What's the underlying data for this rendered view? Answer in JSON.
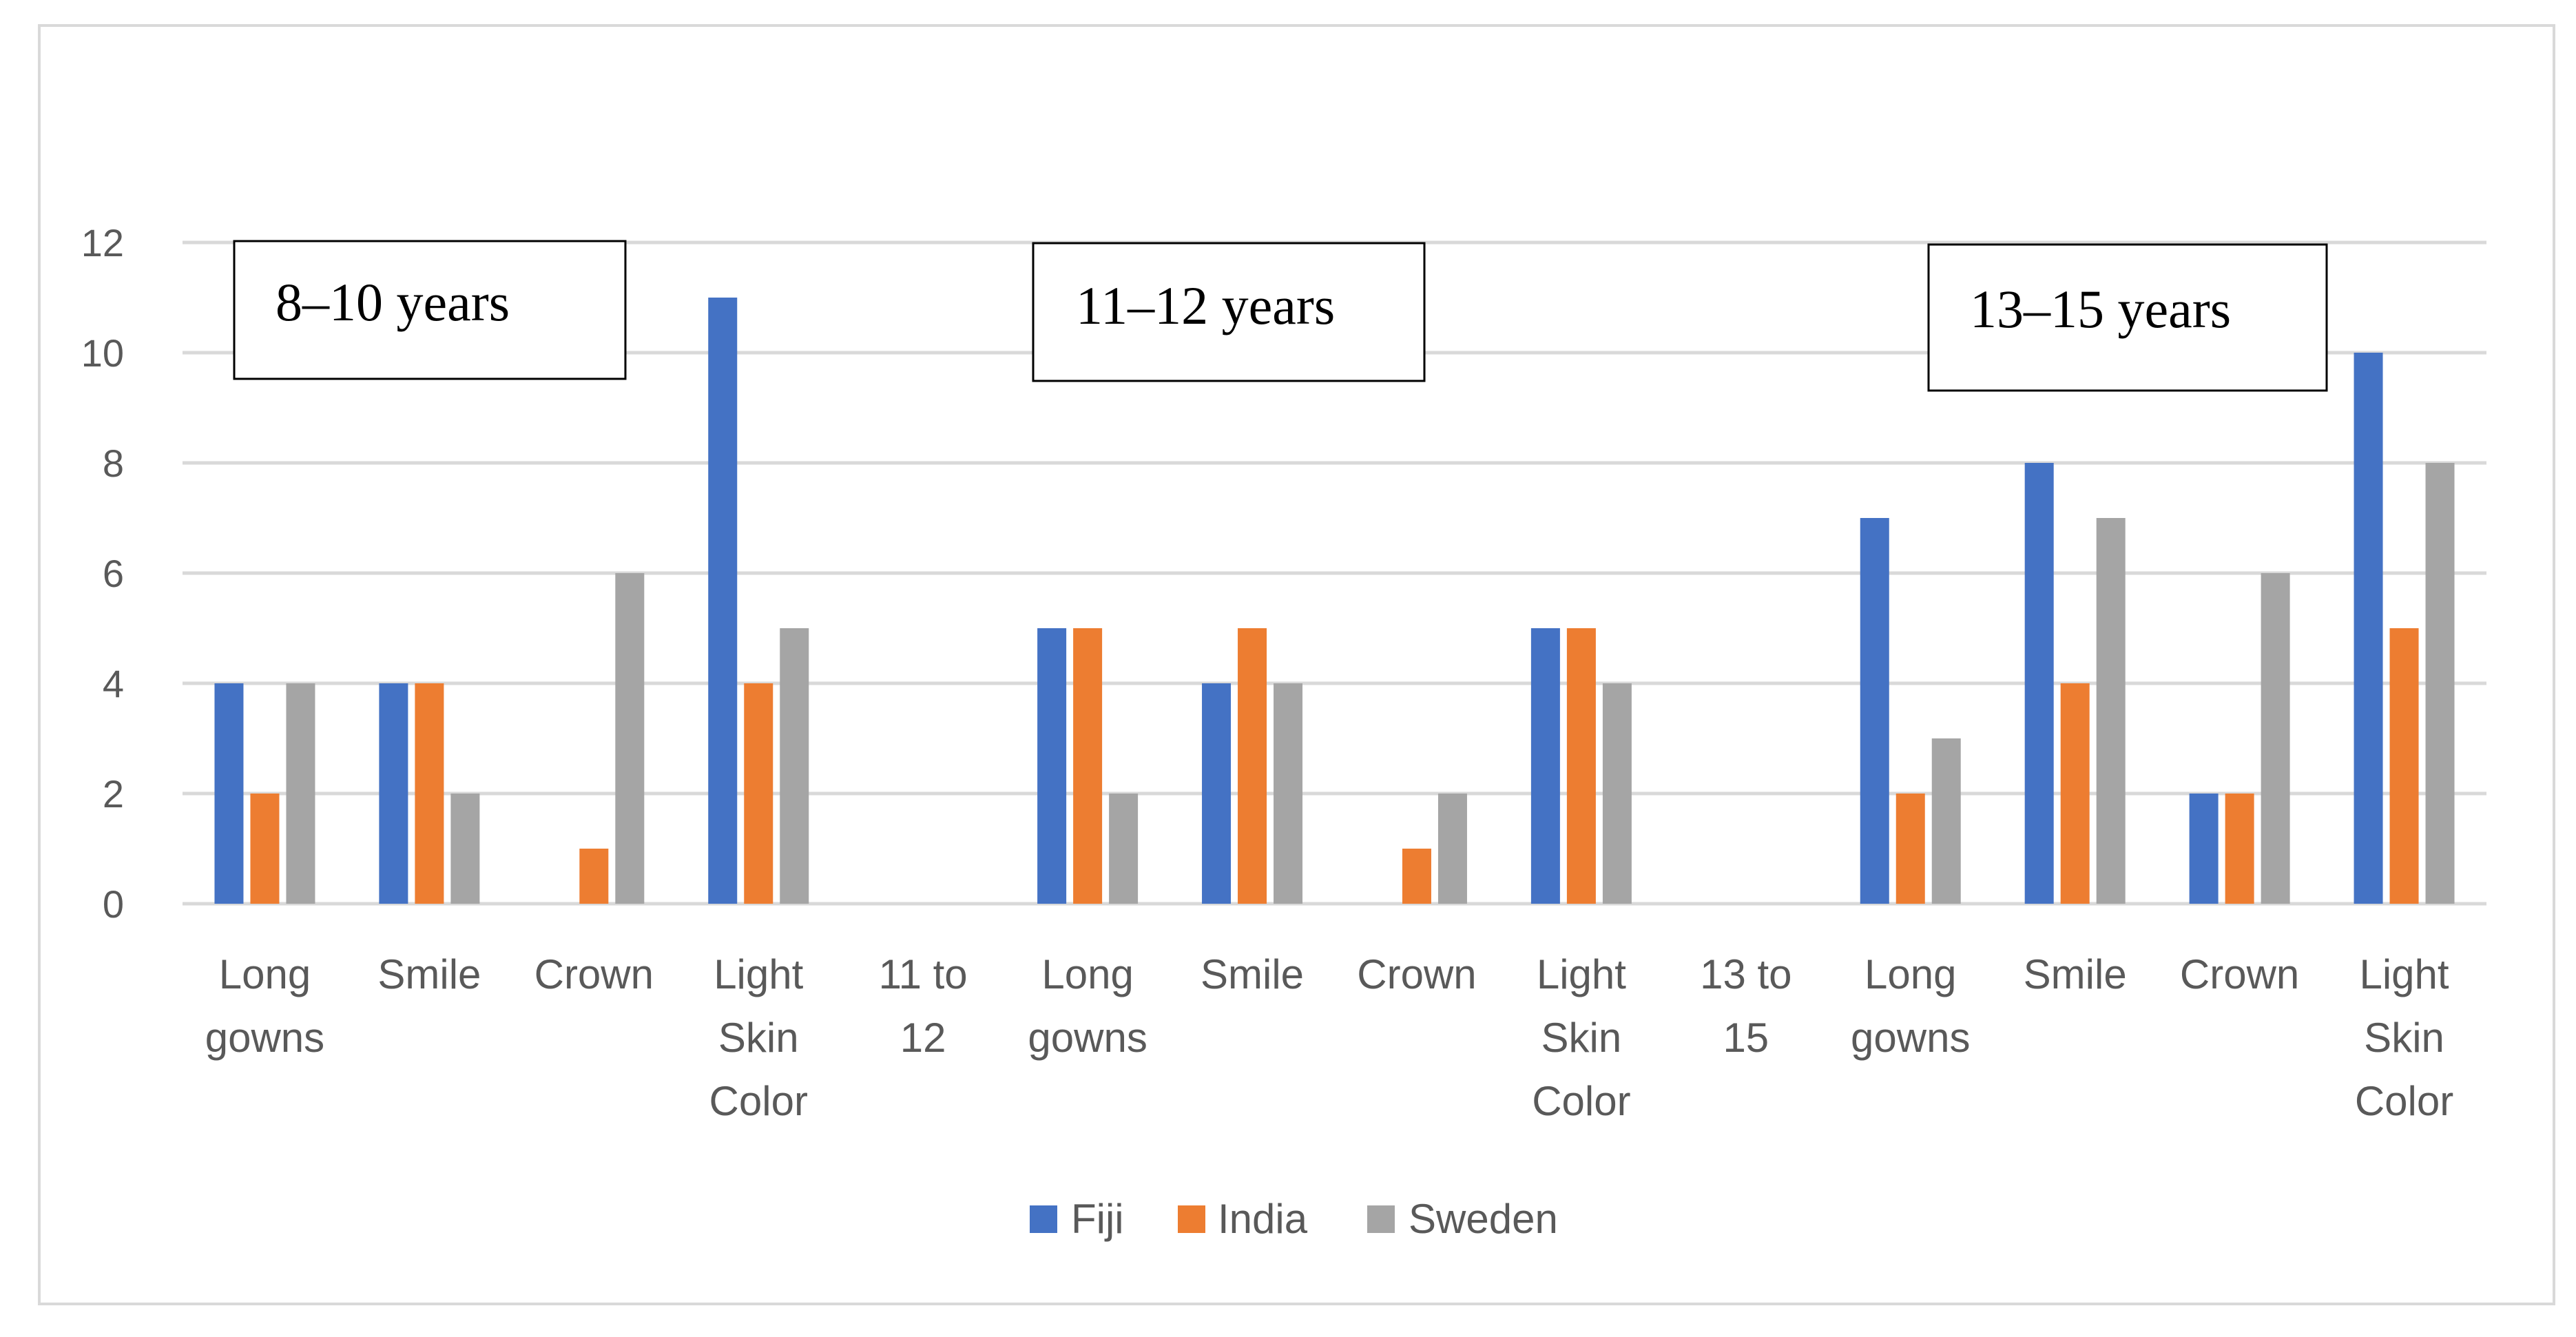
{
  "chart_data": {
    "type": "bar",
    "title": "",
    "xlabel": "",
    "ylabel": "",
    "ylim": [
      0,
      12
    ],
    "yticks": [
      0,
      2,
      4,
      6,
      8,
      10,
      12
    ],
    "grid": true,
    "legend_position": "bottom",
    "categories": [
      "Long gowns",
      "Smile",
      "Crown",
      "Light Skin Color",
      "11 to 12",
      "Long gowns",
      "Smile",
      "Crown",
      "Light Skin Color",
      "13 to 15",
      "Long gowns",
      "Smile",
      "Crown",
      "Light Skin Color"
    ],
    "series": [
      {
        "name": "Fiji",
        "color": "#4472C4",
        "values": [
          4,
          4,
          0,
          11,
          0,
          5,
          4,
          0,
          5,
          0,
          7,
          8,
          2,
          10
        ]
      },
      {
        "name": "India",
        "color": "#ED7D31",
        "values": [
          2,
          4,
          1,
          4,
          0,
          5,
          5,
          1,
          5,
          0,
          2,
          4,
          2,
          5
        ]
      },
      {
        "name": "Sweden",
        "color": "#A5A5A5",
        "values": [
          4,
          2,
          6,
          5,
          0,
          2,
          4,
          2,
          4,
          0,
          3,
          7,
          6,
          8
        ]
      }
    ],
    "annotations": [
      "8–10 years",
      "11–12 years",
      "13–15 years"
    ]
  },
  "colors": {
    "gridline": "#d9d9d9",
    "axis_text": "#595959"
  }
}
